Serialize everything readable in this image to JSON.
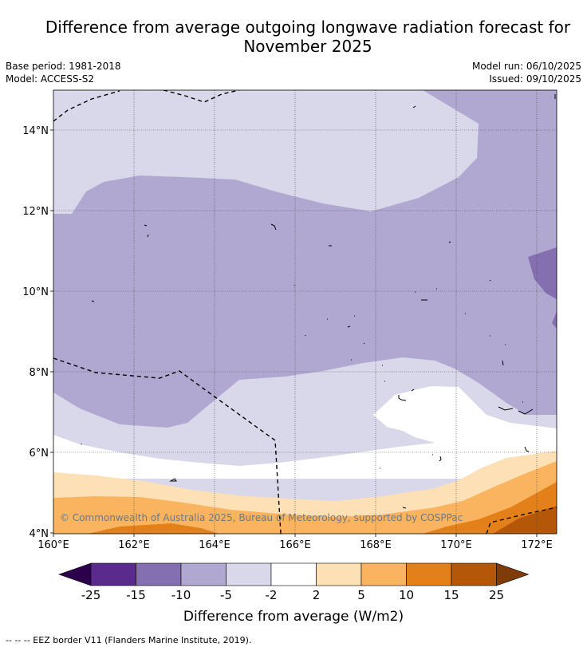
{
  "title_line1": "Difference from average outgoing longwave radiation forecast for",
  "title_line2": "November 2025",
  "meta": {
    "base_period": "Base period: 1981-2018",
    "model": "Model: ACCESS-S2",
    "model_run": "Model run: 06/10/2025",
    "issued": "Issued: 09/10/2025"
  },
  "map": {
    "lat_labels": [
      "4°N",
      "6°N",
      "8°N",
      "10°N",
      "12°N",
      "14°N"
    ],
    "lon_labels": [
      "160°E",
      "162°E",
      "164°E",
      "166°E",
      "168°E",
      "170°E",
      "172°E"
    ],
    "copyright": "© Commonwealth of Australia 2025, Bureau of Meteorology, supported by COSPPac"
  },
  "colorbar": {
    "ticks": [
      "-25",
      "-15",
      "-10",
      "-5",
      "-2",
      "2",
      "5",
      "10",
      "15",
      "25"
    ],
    "colors": [
      "#5a2a8c",
      "#8470b0",
      "#b1a8d2",
      "#d8d8ea",
      "#ffffff",
      "#fde0b5",
      "#fab45f",
      "#e3801a",
      "#b45708"
    ],
    "extend_low_color": "#2d004b",
    "extend_high_color": "#7f3b08",
    "label": "Difference from average (W/m2)"
  },
  "footnote": "-- -- -- EEZ border V11 (Flanders Marine Institute, 2019)."
}
